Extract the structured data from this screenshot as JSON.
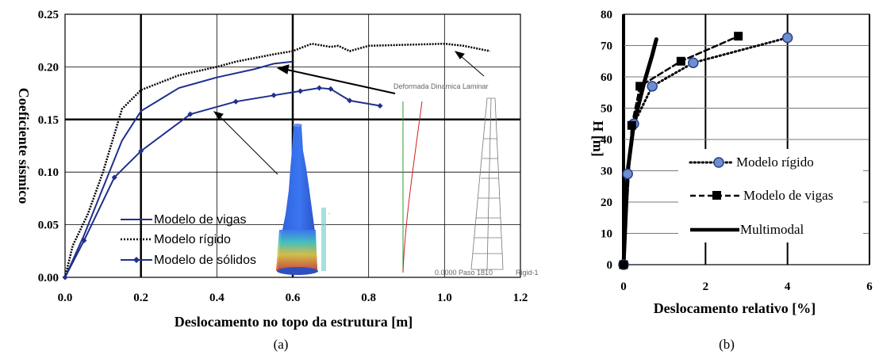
{
  "chart_data": [
    {
      "id": "a",
      "type": "line",
      "caption": "(a)",
      "xlabel": "Deslocamento no topo da estrutura [m]",
      "ylabel": "Coeficiente sísmico",
      "xlim": [
        0.0,
        1.2
      ],
      "ylim": [
        0.0,
        0.25
      ],
      "xticks": [
        "0.0",
        "0.2",
        "0.4",
        "0.6",
        "0.8",
        "1.0",
        "1.2"
      ],
      "yticks": [
        "0.00",
        "0.05",
        "0.10",
        "0.15",
        "0.20",
        "0.25"
      ],
      "grid": true,
      "legend_position": "bottom-left",
      "series": [
        {
          "name": "Modelo de vigas",
          "style": "solid",
          "color": "#1f2f8c",
          "points": [
            [
              0.0,
              0.0
            ],
            [
              0.05,
              0.04
            ],
            [
              0.1,
              0.085
            ],
            [
              0.15,
              0.13
            ],
            [
              0.2,
              0.158
            ],
            [
              0.3,
              0.18
            ],
            [
              0.4,
              0.19
            ],
            [
              0.5,
              0.198
            ],
            [
              0.55,
              0.203
            ],
            [
              0.6,
              0.205
            ]
          ]
        },
        {
          "name": "Modelo rígido",
          "style": "dotted",
          "color": "#000000",
          "points": [
            [
              0.0,
              0.0
            ],
            [
              0.02,
              0.03
            ],
            [
              0.06,
              0.06
            ],
            [
              0.1,
              0.1
            ],
            [
              0.15,
              0.16
            ],
            [
              0.2,
              0.178
            ],
            [
              0.3,
              0.192
            ],
            [
              0.4,
              0.2
            ],
            [
              0.45,
              0.205
            ],
            [
              0.55,
              0.212
            ],
            [
              0.6,
              0.215
            ],
            [
              0.65,
              0.222
            ],
            [
              0.7,
              0.219
            ],
            [
              0.72,
              0.22
            ],
            [
              0.75,
              0.215
            ],
            [
              0.8,
              0.22
            ],
            [
              0.9,
              0.221
            ],
            [
              1.0,
              0.222
            ],
            [
              1.05,
              0.22
            ],
            [
              1.12,
              0.215
            ]
          ]
        },
        {
          "name": "Modelo de sólidos",
          "style": "solid-marker",
          "color": "#1f2f8c",
          "points": [
            [
              0.0,
              0.0
            ],
            [
              0.05,
              0.035
            ],
            [
              0.13,
              0.095
            ],
            [
              0.2,
              0.12
            ],
            [
              0.33,
              0.155
            ],
            [
              0.45,
              0.167
            ],
            [
              0.55,
              0.173
            ],
            [
              0.62,
              0.177
            ],
            [
              0.67,
              0.18
            ],
            [
              0.7,
              0.179
            ],
            [
              0.75,
              0.168
            ],
            [
              0.83,
              0.163
            ]
          ]
        }
      ],
      "inset": {
        "title": "Deformada Dinamica Laminar",
        "footer_left": "0.0000 Paso 1810",
        "footer_right": "Rigid-1"
      }
    },
    {
      "id": "b",
      "type": "line",
      "caption": "(b)",
      "xlabel": "Deslocamento relativo [%]",
      "ylabel": "H [m]",
      "xlim": [
        0,
        6
      ],
      "ylim": [
        0,
        80
      ],
      "xticks": [
        "0",
        "2",
        "4",
        "6"
      ],
      "yticks": [
        "0",
        "10",
        "20",
        "30",
        "40",
        "50",
        "60",
        "70",
        "80"
      ],
      "grid": true,
      "legend_position": "center-right",
      "series": [
        {
          "name": "Modelo rígido",
          "style": "dotted-circle",
          "color": "#000000",
          "points": [
            [
              0.0,
              0.0
            ],
            [
              0.1,
              29.0
            ],
            [
              0.25,
              45.0
            ],
            [
              0.7,
              57.0
            ],
            [
              1.7,
              64.5
            ],
            [
              4.0,
              72.5
            ]
          ]
        },
        {
          "name": "Modelo de vigas",
          "style": "dashed-square",
          "color": "#000000",
          "points": [
            [
              0.0,
              0.0
            ],
            [
              0.2,
              44.5
            ],
            [
              0.4,
              57.0
            ],
            [
              1.4,
              65.0
            ],
            [
              2.8,
              73.0
            ]
          ]
        },
        {
          "name": "Multimodal",
          "style": "thick",
          "color": "#000000",
          "points": [
            [
              0.0,
              0.0
            ],
            [
              0.05,
              15.0
            ],
            [
              0.1,
              30.0
            ],
            [
              0.25,
              45.0
            ],
            [
              0.5,
              58.0
            ],
            [
              0.7,
              67.0
            ],
            [
              0.8,
              72.0
            ]
          ]
        }
      ]
    }
  ]
}
